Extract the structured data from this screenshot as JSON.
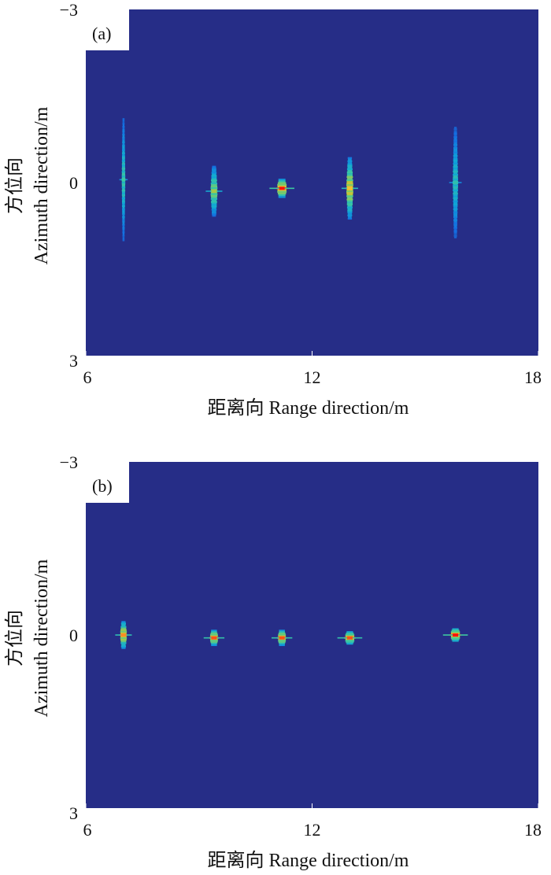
{
  "figure": {
    "background": "#ffffff",
    "plot_background": "#262d87"
  },
  "chart_data": [
    {
      "type": "heatmap",
      "panel_label": "(a)",
      "xlabel": "距离向 Range direction/m",
      "ylabel_cn": "方位向",
      "ylabel_en": "Azimuth direction/m",
      "xlim": [
        6,
        18
      ],
      "ylim": [
        -3,
        3
      ],
      "y_reversed": true,
      "xticks": [
        6,
        12,
        18
      ],
      "yticks": [
        -3,
        0,
        3
      ],
      "xtick_labels": [
        "6",
        "12",
        "18"
      ],
      "ytick_labels": [
        "−3",
        "0",
        "3"
      ],
      "targets": [
        {
          "x": 7.0,
          "y": -0.05,
          "range_extent": 0.1,
          "azimuth_extent": 2.1,
          "peak": 0.55
        },
        {
          "x": 9.4,
          "y": 0.15,
          "range_extent": 0.2,
          "azimuth_extent": 0.85,
          "peak": 0.7
        },
        {
          "x": 11.2,
          "y": 0.1,
          "range_extent": 0.3,
          "azimuth_extent": 0.3,
          "peak": 1.0
        },
        {
          "x": 13.0,
          "y": 0.1,
          "range_extent": 0.2,
          "azimuth_extent": 1.05,
          "peak": 0.85
        },
        {
          "x": 15.8,
          "y": 0.0,
          "range_extent": 0.15,
          "azimuth_extent": 1.9,
          "peak": 0.5
        }
      ]
    },
    {
      "type": "heatmap",
      "panel_label": "(b)",
      "xlabel": "距离向 Range direction/m",
      "ylabel_cn": "方位向",
      "ylabel_en": "Azimuth direction/m",
      "xlim": [
        6,
        18
      ],
      "ylim": [
        -3,
        3
      ],
      "y_reversed": true,
      "xticks": [
        6,
        12,
        18
      ],
      "yticks": [
        -3,
        0,
        3
      ],
      "xtick_labels": [
        "6",
        "12",
        "18"
      ],
      "ytick_labels": [
        "−3",
        "0",
        "3"
      ],
      "targets": [
        {
          "x": 7.0,
          "y": 0.0,
          "range_extent": 0.2,
          "azimuth_extent": 0.45,
          "peak": 0.9
        },
        {
          "x": 9.4,
          "y": 0.05,
          "range_extent": 0.25,
          "azimuth_extent": 0.25,
          "peak": 0.95
        },
        {
          "x": 11.2,
          "y": 0.05,
          "range_extent": 0.25,
          "azimuth_extent": 0.25,
          "peak": 0.95
        },
        {
          "x": 13.0,
          "y": 0.05,
          "range_extent": 0.3,
          "azimuth_extent": 0.2,
          "peak": 0.95
        },
        {
          "x": 15.8,
          "y": 0.0,
          "range_extent": 0.3,
          "azimuth_extent": 0.2,
          "peak": 1.0
        }
      ]
    }
  ]
}
